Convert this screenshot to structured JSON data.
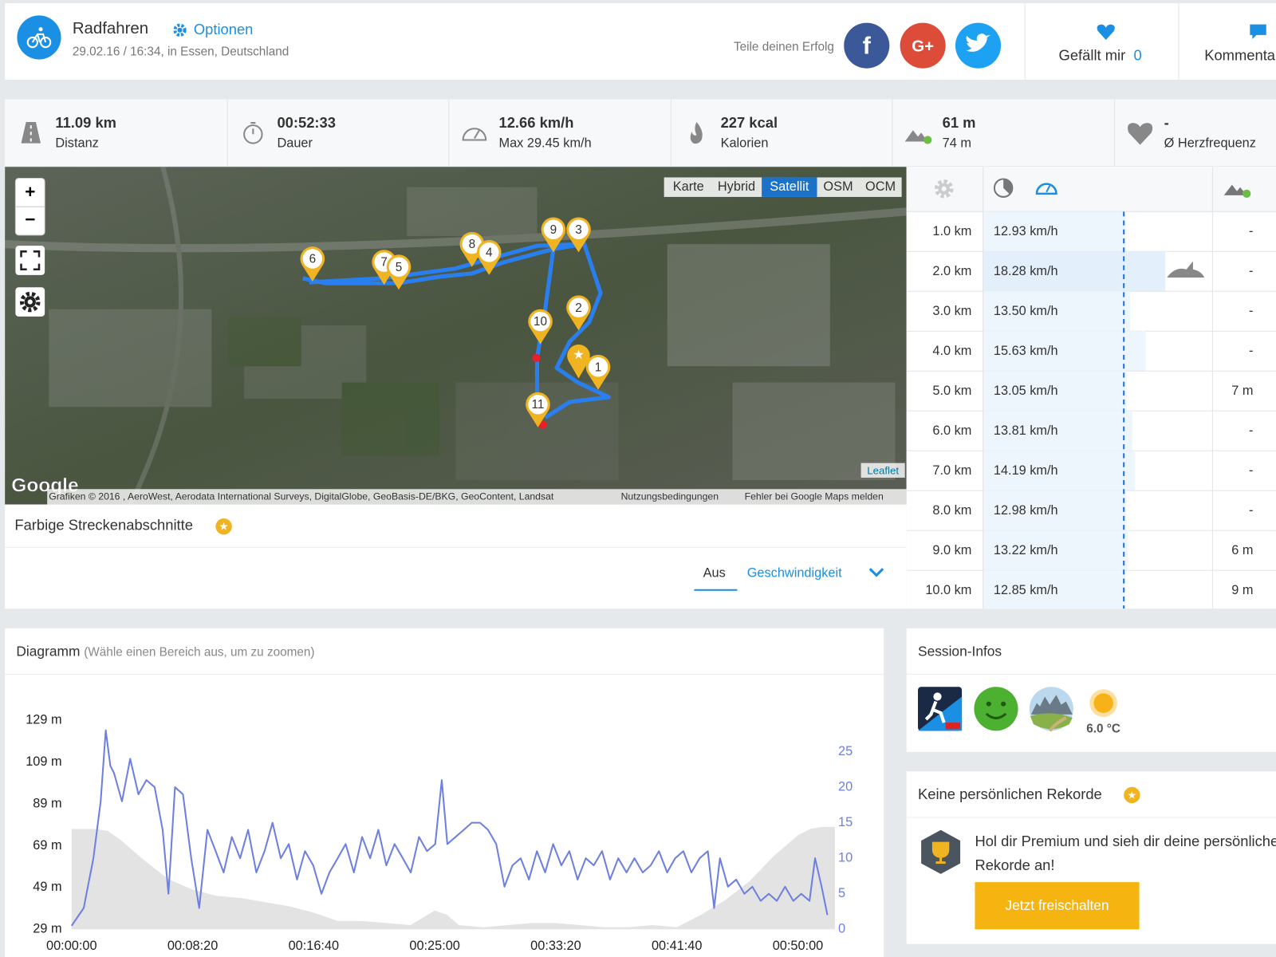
{
  "header": {
    "activity": "Radfahren",
    "options": "Optionen",
    "date": "29.02.16 / 16:34, in Essen, Deutschland",
    "share": "Teile deinen Erfolg",
    "like": "Gefällt mir",
    "like_count": "0",
    "comment": "Kommentare"
  },
  "stats": [
    {
      "value": "11.09 km",
      "label": "Distanz"
    },
    {
      "value": "00:52:33",
      "label": "Dauer"
    },
    {
      "value": "12.66 km/h",
      "label": "Max 29.45 km/h"
    },
    {
      "value": "227 kcal",
      "label": "Kalorien"
    },
    {
      "value": "61 m",
      "label": "74 m"
    },
    {
      "value": "-",
      "label": "Ø Herzfrequenz"
    }
  ],
  "map": {
    "layers": [
      "Karte",
      "Hybrid",
      "Satellit",
      "OSM",
      "OCM"
    ],
    "active_layer": 2,
    "markers": [
      "6",
      "7",
      "5",
      "8",
      "4",
      "9",
      "3",
      "2",
      "10",
      "1",
      "11"
    ],
    "logo": "Google",
    "leaflet": "Leaflet",
    "attribution": [
      "Grafiken © 2016 , AeroWest, Aerodata International Surveys, DigitalGlobe, GeoBasis-DE/BKG, GeoContent, Landsat",
      "Nutzungsbedingungen",
      "Fehler bei Google Maps melden"
    ]
  },
  "segments": {
    "title": "Farbige Streckenabschnitte",
    "off": "Aus",
    "speed": "Geschwindigkeit"
  },
  "splits": {
    "average": 12.66,
    "rows": [
      {
        "distance": "1.0 km",
        "speed": {
          "value": 12.93,
          "label": "12.93 km/h"
        },
        "elevation": "-"
      },
      {
        "distance": "2.0 km",
        "speed": {
          "value": 18.28,
          "label": "18.28 km/h"
        },
        "elevation": "-"
      },
      {
        "distance": "3.0 km",
        "speed": {
          "value": 13.5,
          "label": "13.50 km/h"
        },
        "elevation": "-"
      },
      {
        "distance": "4.0 km",
        "speed": {
          "value": 15.63,
          "label": "15.63 km/h"
        },
        "elevation": "-"
      },
      {
        "distance": "5.0 km",
        "speed": {
          "value": 13.05,
          "label": "13.05 km/h"
        },
        "elevation": "7 m"
      },
      {
        "distance": "6.0 km",
        "speed": {
          "value": 13.81,
          "label": "13.81 km/h"
        },
        "elevation": "-"
      },
      {
        "distance": "7.0 km",
        "speed": {
          "value": 14.19,
          "label": "14.19 km/h"
        },
        "elevation": "-"
      },
      {
        "distance": "8.0 km",
        "speed": {
          "value": 12.98,
          "label": "12.98 km/h"
        },
        "elevation": "-"
      },
      {
        "distance": "9.0 km",
        "speed": {
          "value": 13.22,
          "label": "13.22 km/h"
        },
        "elevation": "6 m"
      },
      {
        "distance": "10.0 km",
        "speed": {
          "value": 12.85,
          "label": "12.85 km/h"
        },
        "elevation": "9 m"
      }
    ]
  },
  "diagram": {
    "type": "line",
    "title": "Diagramm",
    "subtitle": "(Wähle einen Bereich aus, um zu zoomen)",
    "xlim": [
      0,
      3153
    ],
    "xticks": [
      {
        "value": 0,
        "label": "00:00:00"
      },
      {
        "value": 500,
        "label": "00:08:20"
      },
      {
        "value": 1000,
        "label": "00:16:40"
      },
      {
        "value": 1500,
        "label": "00:25:00"
      },
      {
        "value": 2000,
        "label": "00:33:20"
      },
      {
        "value": 2500,
        "label": "00:41:40"
      },
      {
        "value": 3000,
        "label": "00:50:00"
      }
    ],
    "ylim": [
      29,
      131
    ],
    "yticks": [
      {
        "value": 29,
        "label": "29 m"
      },
      {
        "value": 49,
        "label": "49 m"
      },
      {
        "value": 69,
        "label": "69 m"
      },
      {
        "value": 89,
        "label": "89 m"
      },
      {
        "value": 109,
        "label": "109 m"
      },
      {
        "value": 129,
        "label": "129 m"
      }
    ],
    "y2lim": [
      0,
      30
    ],
    "y2ticks": [
      0,
      5,
      10,
      15,
      20,
      25
    ],
    "series": [
      {
        "type": "area",
        "color": "#e3e3e3",
        "x": [
          0,
          100,
          150,
          200,
          300,
          400,
          500,
          600,
          700,
          800,
          900,
          1000,
          1100,
          1200,
          1300,
          1400,
          1500,
          1550,
          1600,
          1700,
          1800,
          1900,
          2000,
          2100,
          2200,
          2300,
          2400,
          2500,
          2550,
          2600,
          2700,
          2800,
          2900,
          3000,
          3050,
          3100,
          3153
        ],
        "values": [
          77,
          77,
          76,
          72,
          62,
          53,
          48,
          45,
          44,
          42,
          40,
          37,
          33,
          33,
          32,
          31,
          38,
          36,
          31,
          30,
          31,
          32,
          32,
          31,
          30,
          30,
          31,
          30,
          33,
          36,
          43,
          52,
          64,
          74,
          77,
          78,
          78
        ]
      },
      {
        "type": "line",
        "color": "#6d7fe0",
        "axis": "y2",
        "x": [
          0,
          50,
          90,
          120,
          141,
          160,
          175,
          208,
          242,
          276,
          309,
          343,
          376,
          400,
          427,
          460,
          494,
          527,
          561,
          595,
          628,
          662,
          696,
          729,
          763,
          797,
          830,
          864,
          897,
          931,
          964,
          998,
          1032,
          1065,
          1099,
          1132,
          1166,
          1200,
          1233,
          1267,
          1300,
          1334,
          1368,
          1401,
          1435,
          1468,
          1502,
          1529,
          1552,
          1586,
          1620,
          1653,
          1687,
          1720,
          1754,
          1788,
          1821,
          1855,
          1889,
          1922,
          1956,
          1989,
          2023,
          2056,
          2090,
          2124,
          2157,
          2191,
          2224,
          2258,
          2292,
          2325,
          2359,
          2392,
          2426,
          2460,
          2493,
          2527,
          2560,
          2594,
          2628,
          2654,
          2678,
          2711,
          2745,
          2779,
          2812,
          2846,
          2880,
          2913,
          2947,
          2981,
          3014,
          3048,
          3071,
          3098,
          3122
        ],
        "values": [
          0.5,
          3,
          10,
          18,
          28,
          23,
          22,
          18,
          24,
          19,
          21,
          20,
          14,
          5,
          20,
          19,
          10,
          3,
          14,
          11,
          8,
          13,
          10,
          14,
          8,
          11,
          15,
          10,
          12,
          7,
          11,
          9,
          5,
          8,
          10,
          12,
          8,
          13,
          10,
          14,
          9,
          12,
          10,
          8,
          13,
          11,
          12,
          21,
          12,
          13,
          14,
          15,
          15,
          14,
          12,
          6,
          9,
          10,
          7,
          11,
          8,
          12,
          9,
          11,
          7,
          10,
          9,
          11,
          7,
          10,
          8,
          10,
          8,
          9,
          11,
          8,
          10,
          11,
          8,
          10,
          11,
          3,
          10,
          6,
          7,
          5,
          6,
          4,
          5,
          4,
          6,
          4,
          5,
          4,
          10,
          6,
          2
        ]
      }
    ]
  },
  "session": {
    "title": "Session-Infos",
    "temperature": "6.0 °C"
  },
  "records": {
    "title": "Keine persönlichen Rekorde",
    "text": "Hol dir Premium und sieh dir deine persönlichen Rekorde an!",
    "button": "Jetzt freischalten"
  }
}
